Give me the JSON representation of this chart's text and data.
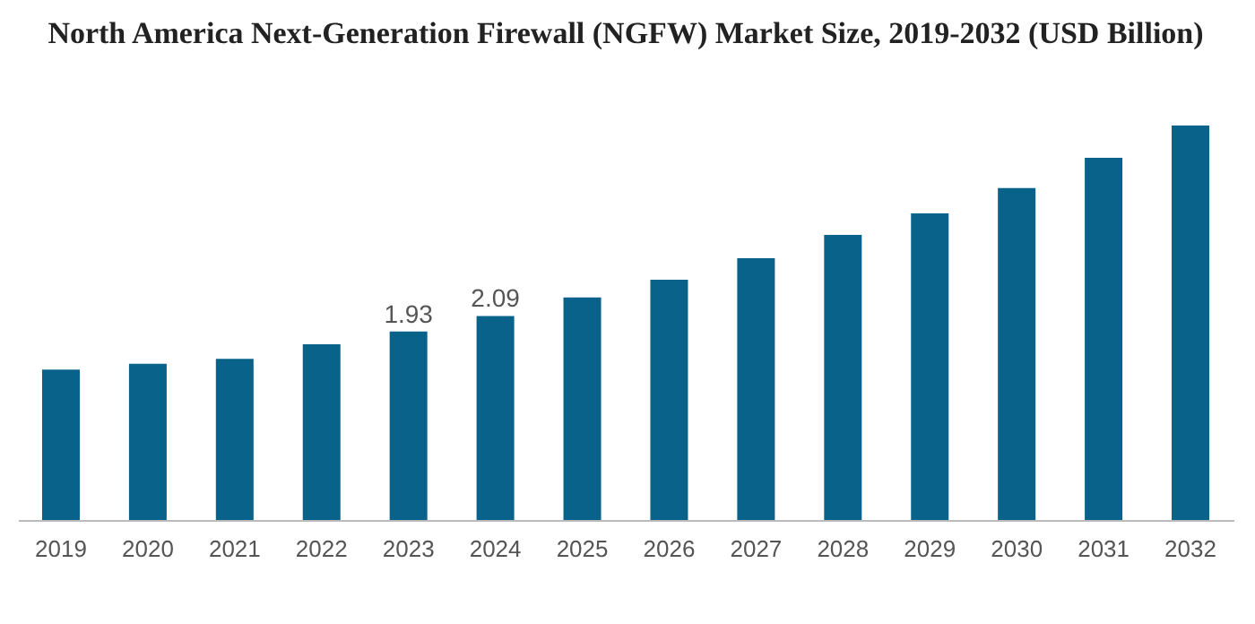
{
  "chart_data": {
    "type": "bar",
    "title": "North America Next-Generation Firewall (NGFW) Market Size, 2019-2032 (USD Billion)",
    "categories": [
      "2019",
      "2020",
      "2021",
      "2022",
      "2023",
      "2024",
      "2025",
      "2026",
      "2027",
      "2028",
      "2029",
      "2030",
      "2031",
      "2032"
    ],
    "values": [
      1.54,
      1.6,
      1.65,
      1.8,
      1.93,
      2.09,
      2.28,
      2.46,
      2.68,
      2.92,
      3.14,
      3.4,
      3.71,
      4.04
    ],
    "value_labels": [
      null,
      null,
      null,
      null,
      "1.93",
      "2.09",
      null,
      null,
      null,
      null,
      null,
      null,
      null,
      null
    ],
    "color": "#08628a",
    "grid": false
  }
}
